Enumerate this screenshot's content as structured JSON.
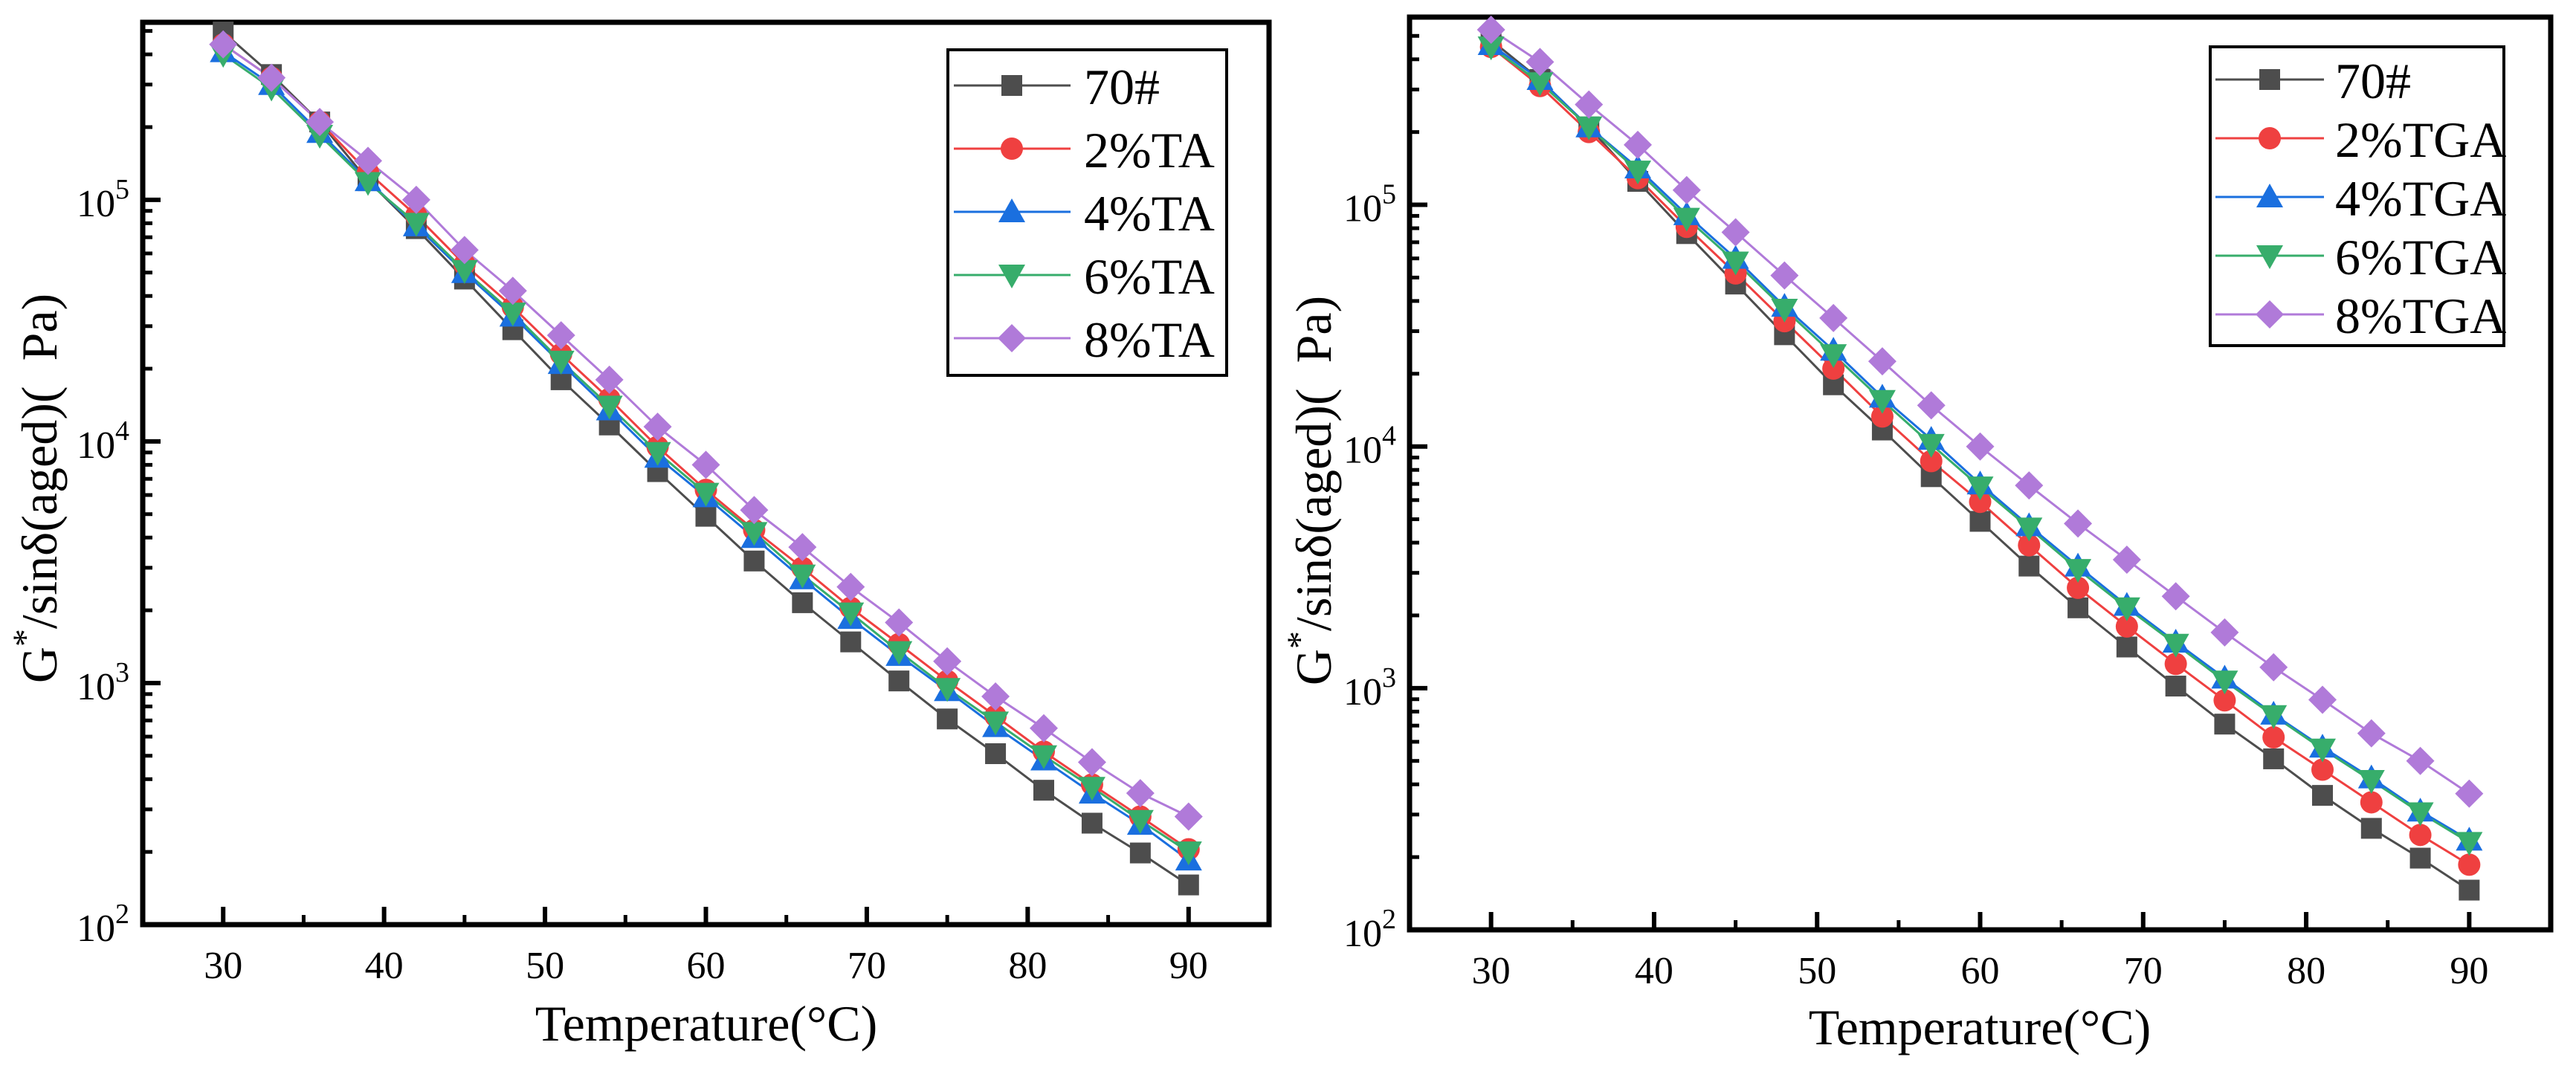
{
  "chart_data": [
    {
      "type": "line",
      "title": "",
      "xlabel": "Temperature(°C)",
      "ylabel": "G*/sinδ(aged)(  Pa)",
      "xscale": "linear",
      "yscale": "log",
      "xlim": [
        25,
        95
      ],
      "ylim": [
        100,
        543000
      ],
      "xticks": [
        30,
        40,
        50,
        60,
        70,
        80,
        90
      ],
      "yticks": [
        100,
        1000,
        10000,
        100000
      ],
      "legend_position": "top-right",
      "grid": false,
      "x": [
        30,
        33,
        36,
        39,
        42,
        45,
        48,
        51,
        54,
        57,
        60,
        63,
        66,
        69,
        72,
        75,
        78,
        81,
        84,
        87,
        90
      ],
      "series": [
        {
          "name": "70#",
          "color": "#4d4d4d",
          "marker": "square",
          "values": [
            495000,
            330000,
            210000,
            120000,
            76000,
            47000,
            29000,
            18000,
            11700,
            7500,
            4900,
            3200,
            2150,
            1480,
            1020,
            710,
            510,
            360,
            263,
            198,
            146
          ]
        },
        {
          "name": "2%TA",
          "color": "#ef4040",
          "marker": "circle",
          "values": [
            440000,
            320000,
            210000,
            130000,
            86000,
            54000,
            36000,
            23000,
            15000,
            9500,
            6300,
            4300,
            3000,
            2050,
            1450,
            1020,
            730,
            520,
            380,
            280,
            205
          ]
        },
        {
          "name": "4%TA",
          "color": "#1a6fdf",
          "marker": "triangle-up",
          "values": [
            410000,
            300000,
            190000,
            120000,
            78000,
            50000,
            33000,
            21000,
            13500,
            8600,
            5900,
            4000,
            2700,
            1850,
            1300,
            930,
            660,
            480,
            350,
            260,
            185
          ]
        },
        {
          "name": "6%TA",
          "color": "#37ad6b",
          "marker": "triangle-down",
          "values": [
            400000,
            290000,
            185000,
            118000,
            80000,
            51000,
            34000,
            21500,
            14000,
            9000,
            6100,
            4200,
            2800,
            1950,
            1350,
            950,
            690,
            500,
            370,
            270,
            200
          ]
        },
        {
          "name": "8%TA",
          "color": "#b07ad9",
          "marker": "diamond",
          "values": [
            440000,
            320000,
            210000,
            145000,
            100000,
            62000,
            42000,
            27500,
            18000,
            11500,
            8000,
            5200,
            3650,
            2500,
            1780,
            1230,
            880,
            650,
            470,
            350,
            280
          ]
        }
      ]
    },
    {
      "type": "line",
      "title": "",
      "xlabel": "Temperature(°C)",
      "ylabel": "G*/sinδ(aged)(  Pa)",
      "xscale": "linear",
      "yscale": "log",
      "xlim": [
        25,
        95
      ],
      "ylim": [
        100,
        598000
      ],
      "xticks": [
        30,
        40,
        50,
        60,
        70,
        80,
        90
      ],
      "yticks": [
        100,
        1000,
        10000,
        100000
      ],
      "legend_position": "top-right",
      "grid": false,
      "x": [
        30,
        33,
        36,
        39,
        42,
        45,
        48,
        51,
        54,
        57,
        60,
        63,
        66,
        69,
        72,
        75,
        78,
        81,
        84,
        87,
        90
      ],
      "series": [
        {
          "name": "70#",
          "color": "#4d4d4d",
          "marker": "square",
          "values": [
            480000,
            330000,
            210000,
            125000,
            76000,
            47000,
            29000,
            18000,
            11700,
            7500,
            4900,
            3200,
            2150,
            1480,
            1020,
            710,
            510,
            360,
            263,
            198,
            146
          ]
        },
        {
          "name": "2%TGA",
          "color": "#ef4040",
          "marker": "circle",
          "values": [
            450000,
            310000,
            200000,
            129000,
            81000,
            52000,
            33000,
            21000,
            13300,
            8700,
            5900,
            3900,
            2600,
            1800,
            1260,
            890,
            626,
            460,
            337,
            247,
            186
          ]
        },
        {
          "name": "4%TGA",
          "color": "#1a6fdf",
          "marker": "triangle-up",
          "values": [
            460000,
            330000,
            210000,
            142000,
            91000,
            60000,
            38000,
            25000,
            16000,
            10700,
            7000,
            4700,
            3200,
            2200,
            1550,
            1100,
            780,
            570,
            425,
            310,
            235
          ]
        },
        {
          "name": "6%TGA",
          "color": "#37ad6b",
          "marker": "triangle-down",
          "values": [
            450000,
            320000,
            210000,
            138000,
            88000,
            58000,
            37000,
            24000,
            15500,
            10200,
            6800,
            4600,
            3100,
            2150,
            1520,
            1070,
            770,
            560,
            415,
            305,
            230
          ]
        },
        {
          "name": "8%TGA",
          "color": "#b07ad9",
          "marker": "diamond",
          "values": [
            530000,
            390000,
            260000,
            177000,
            115000,
            77000,
            51000,
            34000,
            22500,
            14800,
            10000,
            6900,
            4800,
            3400,
            2400,
            1700,
            1220,
            895,
            650,
            500,
            366
          ]
        }
      ]
    }
  ]
}
